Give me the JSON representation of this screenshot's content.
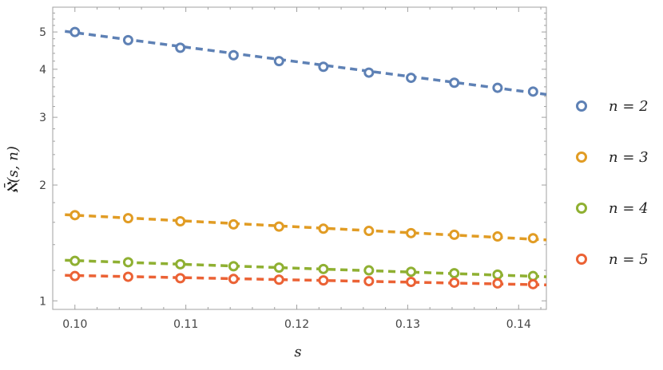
{
  "chart_data": {
    "type": "scatter",
    "title": "",
    "xlabel": "s",
    "ylabel": "ℵ̄(s, n)",
    "xlim": [
      0.098,
      0.1425
    ],
    "ylim": [
      0.95,
      5.8
    ],
    "y_scale": "log",
    "x_ticks": [
      0.1,
      0.11,
      0.12,
      0.13,
      0.14
    ],
    "x_tick_labels": [
      "0.10",
      "0.11",
      "0.12",
      "0.13",
      "0.14"
    ],
    "y_ticks": [
      1,
      2,
      3,
      4,
      5
    ],
    "y_tick_labels": [
      "1",
      "2",
      "3",
      "4",
      "5"
    ],
    "grid": false,
    "legend_position": "right",
    "x": [
      0.1,
      0.1048,
      0.1095,
      0.1143,
      0.1184,
      0.1224,
      0.1265,
      0.1303,
      0.1342,
      0.1381,
      0.1413
    ],
    "series": [
      {
        "name": "n = 2",
        "color": "#5e81b5",
        "values": [
          5.0,
          4.76,
          4.55,
          4.35,
          4.2,
          4.06,
          3.92,
          3.8,
          3.69,
          3.58,
          3.5
        ],
        "fit": [
          5.02,
          3.44
        ]
      },
      {
        "name": "n = 3",
        "color": "#e19c24",
        "values": [
          1.67,
          1.64,
          1.61,
          1.58,
          1.56,
          1.54,
          1.52,
          1.5,
          1.485,
          1.47,
          1.455
        ],
        "fit": [
          1.675,
          1.44
        ]
      },
      {
        "name": "n = 4",
        "color": "#8fb032",
        "values": [
          1.27,
          1.26,
          1.245,
          1.23,
          1.22,
          1.21,
          1.2,
          1.19,
          1.18,
          1.17,
          1.16
        ],
        "fit": [
          1.275,
          1.155
        ]
      },
      {
        "name": "n = 5",
        "color": "#eb6235",
        "values": [
          1.16,
          1.155,
          1.145,
          1.14,
          1.135,
          1.13,
          1.125,
          1.12,
          1.115,
          1.11,
          1.105
        ],
        "fit": [
          1.165,
          1.1
        ]
      }
    ]
  }
}
